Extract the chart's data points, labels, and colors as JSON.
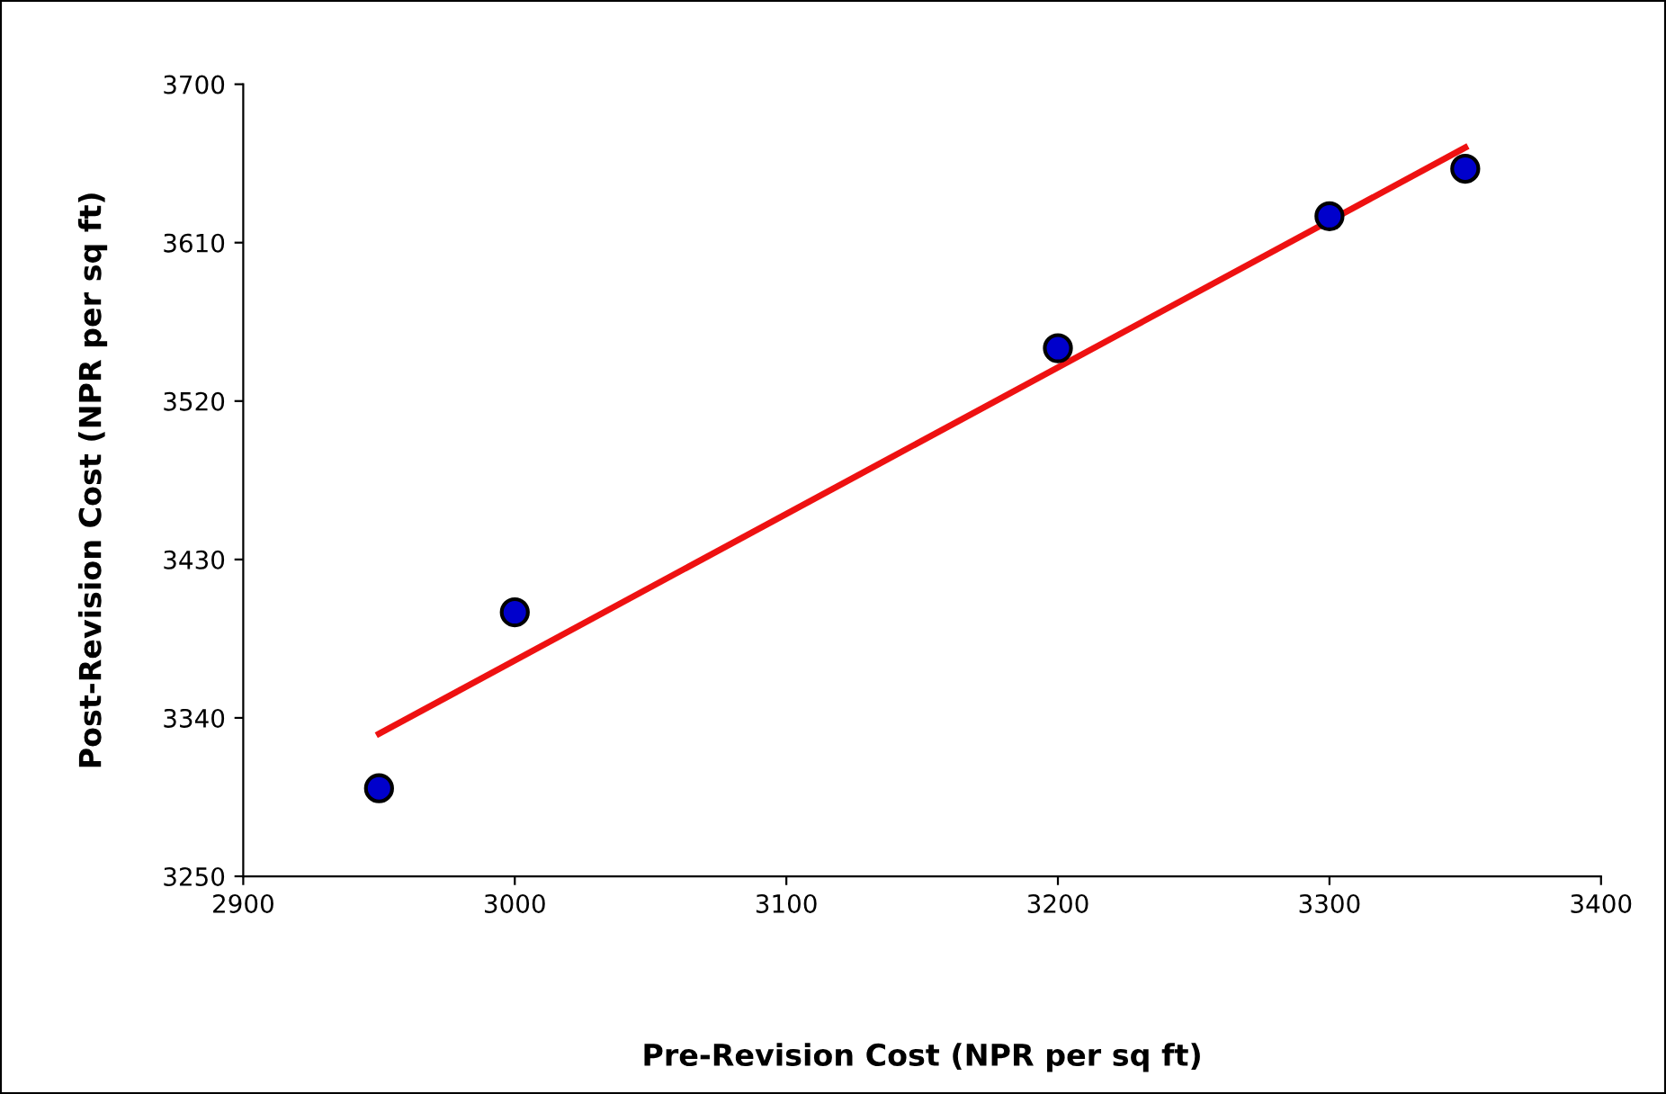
{
  "chart_data": {
    "type": "scatter",
    "xlabel": "Pre-Revision Cost (NPR per sq ft)",
    "ylabel": "Post-Revision Cost (NPR per sq ft)",
    "xlim": [
      2900,
      3400
    ],
    "xticks": [
      2900,
      3000,
      3100,
      3200,
      3300,
      3400
    ],
    "ylim": [
      3250,
      3700
    ],
    "yticks": [
      3250,
      3340,
      3430,
      3520,
      3610,
      3700
    ],
    "grid": false,
    "marker": "circle",
    "series": [
      {
        "color": "#0000cc",
        "x": [
          2950,
          3000,
          3200,
          3300,
          3350
        ],
        "values": [
          3300,
          3400,
          3550,
          3625,
          3652
        ]
      },
      {
        "type": "line",
        "color": "#ee1111",
        "x": [
          2950,
          3350
        ],
        "values": [
          3331,
          3664
        ],
        "marker": "none",
        "line_style": "solid"
      }
    ]
  }
}
